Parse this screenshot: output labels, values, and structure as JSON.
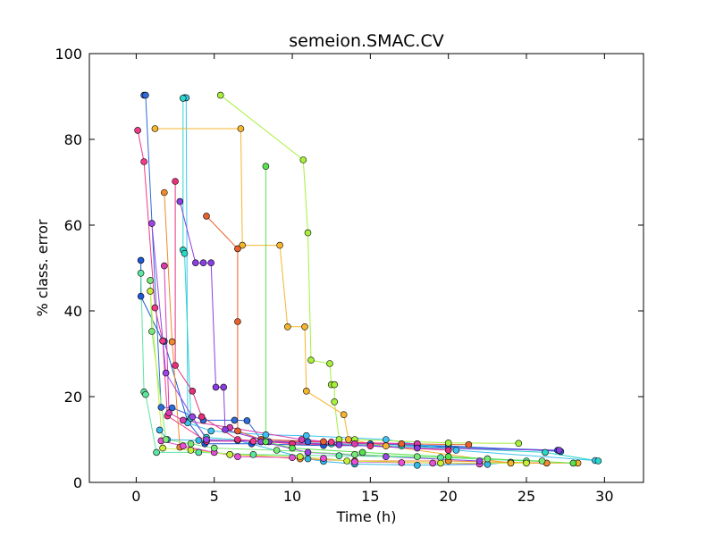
{
  "chart_data": {
    "type": "line",
    "title": "semeion.SMAC.CV",
    "xlabel": "Time (h)",
    "ylabel": "% class. error",
    "xlim": [
      -3,
      32.5
    ],
    "ylim": [
      0,
      100
    ],
    "xticks": [
      0,
      5,
      10,
      15,
      20,
      25,
      30
    ],
    "yticks": [
      0,
      20,
      40,
      60,
      80,
      100
    ],
    "grid": false,
    "legend": "none",
    "series": [
      {
        "color": "#2f6bd9",
        "points": [
          [
            0.5,
            90.3
          ],
          [
            0.6,
            90.3
          ],
          [
            1.6,
            17.5
          ],
          [
            2.3,
            17.4
          ],
          [
            4.3,
            14.5
          ],
          [
            6.3,
            14.5
          ],
          [
            7.1,
            14.4
          ],
          [
            8.0,
            10.0
          ],
          [
            11.0,
            9.5
          ],
          [
            15.0,
            9.0
          ],
          [
            20.0,
            8.5
          ],
          [
            27.2,
            7.2
          ]
        ]
      },
      {
        "color": "#1f57d6",
        "points": [
          [
            0.3,
            51.8
          ],
          [
            0.3,
            43.4
          ],
          [
            1.7,
            33.0
          ],
          [
            1.8,
            32.9
          ],
          [
            3.3,
            14.2
          ],
          [
            4.4,
            9.0
          ],
          [
            7.4,
            9.0
          ],
          [
            12.0,
            8.6
          ],
          [
            18.0,
            8.5
          ],
          [
            27.0,
            7.5
          ]
        ]
      },
      {
        "color": "#3fc2f0",
        "points": [
          [
            3.1,
            89.7
          ],
          [
            3.2,
            89.7
          ],
          [
            3.3,
            13.9
          ],
          [
            4.8,
            12.0
          ],
          [
            8.3,
            11.1
          ],
          [
            10.9,
            10.9
          ],
          [
            16.0,
            10.0
          ],
          [
            20.5,
            7.5
          ],
          [
            29.4,
            5.1
          ]
        ]
      },
      {
        "color": "#2bd7c7",
        "points": [
          [
            3.0,
            89.6
          ],
          [
            3.0,
            54.2
          ],
          [
            3.1,
            53.4
          ],
          [
            3.5,
            15.0
          ],
          [
            4.5,
            10.5
          ],
          [
            8.0,
            9.5
          ],
          [
            12.5,
            9.0
          ],
          [
            17.0,
            8.5
          ],
          [
            26.2,
            7.0
          ],
          [
            29.6,
            5.0
          ]
        ]
      },
      {
        "color": "#33b8e8",
        "points": [
          [
            1.5,
            12.2
          ],
          [
            2.0,
            10.0
          ],
          [
            4.0,
            9.8
          ],
          [
            6.5,
            9.8
          ],
          [
            11.0,
            5.5
          ],
          [
            12.0,
            4.9
          ],
          [
            14.0,
            4.3
          ],
          [
            18.0,
            4.0
          ],
          [
            22.5,
            4.2
          ],
          [
            24.0,
            4.7
          ]
        ]
      },
      {
        "color": "#a6f03a",
        "points": [
          [
            5.4,
            90.3
          ],
          [
            10.7,
            75.2
          ],
          [
            11.0,
            58.2
          ],
          [
            11.2,
            28.5
          ],
          [
            12.4,
            27.7
          ],
          [
            12.5,
            22.8
          ],
          [
            12.7,
            22.8
          ],
          [
            12.7,
            18.8
          ],
          [
            13.0,
            10.0
          ],
          [
            14.0,
            10.0
          ],
          [
            20.0,
            9.2
          ],
          [
            24.5,
            9.1
          ]
        ]
      },
      {
        "color": "#f5b52e",
        "points": [
          [
            1.2,
            82.5
          ],
          [
            6.7,
            82.5
          ],
          [
            6.8,
            55.3
          ],
          [
            9.2,
            55.3
          ],
          [
            9.7,
            36.3
          ],
          [
            10.8,
            36.3
          ],
          [
            10.9,
            21.3
          ],
          [
            13.3,
            15.8
          ],
          [
            13.6,
            10.0
          ],
          [
            16.0,
            8.5
          ],
          [
            24.0,
            4.5
          ],
          [
            28.3,
            4.5
          ]
        ]
      },
      {
        "color": "#f08a2a",
        "points": [
          [
            1.8,
            67.6
          ],
          [
            2.3,
            32.8
          ],
          [
            2.8,
            8.2
          ],
          [
            6.0,
            6.5
          ],
          [
            10.5,
            5.5
          ],
          [
            14.0,
            5.0
          ],
          [
            20.0,
            5.0
          ],
          [
            26.3,
            4.5
          ]
        ]
      },
      {
        "color": "#e8602c",
        "points": [
          [
            4.5,
            62.1
          ],
          [
            6.5,
            54.5
          ],
          [
            6.5,
            37.5
          ],
          [
            6.5,
            12.0
          ],
          [
            8.0,
            10.0
          ],
          [
            12.0,
            9.5
          ],
          [
            17.0,
            9.0
          ],
          [
            21.3,
            8.8
          ]
        ]
      },
      {
        "color": "#f03a8a",
        "points": [
          [
            0.1,
            82.1
          ],
          [
            0.5,
            74.8
          ],
          [
            1.2,
            40.7
          ],
          [
            1.7,
            33.0
          ],
          [
            2.0,
            15.5
          ],
          [
            4.5,
            9.6
          ],
          [
            7.5,
            9.6
          ],
          [
            12.5,
            9.4
          ],
          [
            18.0,
            9.0
          ]
        ]
      },
      {
        "color": "#e8307a",
        "points": [
          [
            2.5,
            70.2
          ],
          [
            2.5,
            27.3
          ],
          [
            3.6,
            21.3
          ],
          [
            4.2,
            15.3
          ],
          [
            6.5,
            10.0
          ],
          [
            10.0,
            9.0
          ],
          [
            15.0,
            8.5
          ],
          [
            20.0,
            7.5
          ]
        ]
      },
      {
        "color": "#d93cb0",
        "points": [
          [
            1.8,
            50.5
          ],
          [
            2.1,
            16.2
          ],
          [
            3.0,
            14.5
          ],
          [
            6.0,
            12.8
          ],
          [
            10.6,
            10.0
          ],
          [
            14.0,
            9.0
          ],
          [
            18.0,
            9.0
          ]
        ]
      },
      {
        "color": "#e84fd8",
        "points": [
          [
            1.6,
            9.7
          ],
          [
            3.0,
            8.5
          ],
          [
            5.0,
            7.0
          ],
          [
            6.5,
            6.0
          ],
          [
            10.0,
            5.8
          ],
          [
            12.0,
            5.6
          ],
          [
            14.0,
            4.8
          ],
          [
            17.0,
            4.6
          ],
          [
            19.0,
            4.5
          ],
          [
            22.0,
            4.3
          ]
        ]
      },
      {
        "color": "#8b3ee0",
        "points": [
          [
            2.8,
            65.5
          ],
          [
            3.8,
            51.2
          ],
          [
            4.3,
            51.2
          ],
          [
            4.8,
            51.2
          ],
          [
            5.1,
            22.2
          ],
          [
            5.6,
            22.2
          ],
          [
            5.7,
            12.3
          ],
          [
            8.5,
            9.5
          ],
          [
            13.0,
            8.8
          ],
          [
            18.0,
            8.0
          ],
          [
            27.1,
            7.5
          ]
        ]
      },
      {
        "color": "#9b45e6",
        "points": [
          [
            1.0,
            60.4
          ],
          [
            1.9,
            25.5
          ],
          [
            3.6,
            15.3
          ],
          [
            4.5,
            10.0
          ],
          [
            8.0,
            9.5
          ],
          [
            11.0,
            7.0
          ],
          [
            16.0,
            6.0
          ],
          [
            22.0,
            5.0
          ]
        ]
      },
      {
        "color": "#5ce6a0",
        "points": [
          [
            0.3,
            48.8
          ],
          [
            0.5,
            21.1
          ],
          [
            0.6,
            20.5
          ],
          [
            1.3,
            7.0
          ],
          [
            4.0,
            7.0
          ],
          [
            7.5,
            6.5
          ],
          [
            13.0,
            6.2
          ],
          [
            19.5,
            5.8
          ],
          [
            25.0,
            5.0
          ]
        ]
      },
      {
        "color": "#7be87a",
        "points": [
          [
            0.9,
            47.1
          ],
          [
            1.0,
            35.2
          ],
          [
            1.9,
            10.0
          ],
          [
            3.5,
            9.0
          ],
          [
            5.0,
            8.0
          ],
          [
            9.0,
            7.5
          ],
          [
            14.0,
            6.5
          ],
          [
            18.0,
            6.0
          ],
          [
            22.5,
            5.5
          ],
          [
            26.0,
            5.0
          ]
        ]
      },
      {
        "color": "#59e24f",
        "points": [
          [
            8.3,
            73.7
          ],
          [
            8.3,
            9.5
          ],
          [
            10.0,
            8.0
          ],
          [
            14.5,
            7.0
          ],
          [
            20.0,
            6.0
          ],
          [
            28.0,
            4.5
          ]
        ]
      },
      {
        "color": "#c8ee3a",
        "points": [
          [
            0.9,
            44.6
          ],
          [
            1.7,
            8.0
          ],
          [
            3.5,
            7.5
          ],
          [
            6.0,
            6.5
          ],
          [
            10.5,
            6.0
          ],
          [
            13.5,
            5.0
          ],
          [
            19.5,
            4.5
          ],
          [
            25.0,
            4.5
          ]
        ]
      }
    ]
  }
}
